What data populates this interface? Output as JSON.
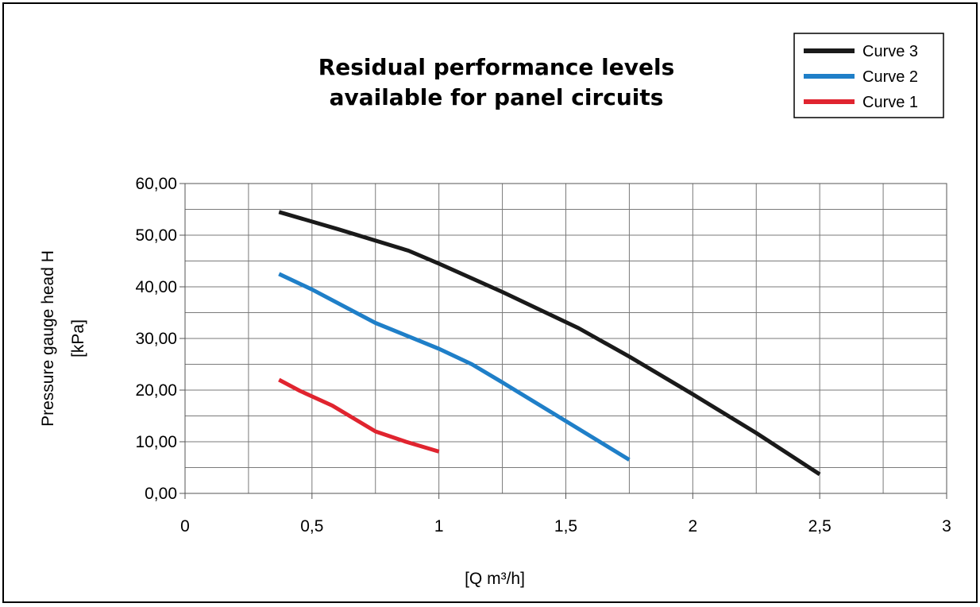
{
  "chart_data": {
    "type": "line",
    "title_lines": [
      "Residual performance levels",
      "available for panel circuits"
    ],
    "xlabel": "[Q m³/h]",
    "ylabel_lines": [
      "Pressure gauge head H",
      "[kPa]"
    ],
    "xlim": [
      0,
      3
    ],
    "ylim": [
      0,
      60
    ],
    "x_ticks": [
      0,
      0.5,
      1,
      1.5,
      2,
      2.5,
      3
    ],
    "x_tick_labels": [
      "0",
      "0,5",
      "1",
      "1,5",
      "2",
      "2,5",
      "3"
    ],
    "y_ticks": [
      0,
      10,
      20,
      30,
      40,
      50,
      60
    ],
    "y_tick_labels": [
      "0,00",
      "10,00",
      "20,00",
      "30,00",
      "40,00",
      "50,00",
      "60,00"
    ],
    "x_grid_step": 0.25,
    "y_grid_step": 5,
    "grid": true,
    "legend_position": "top-right",
    "series": [
      {
        "name": "Curve 3",
        "color": "#1a1a1a",
        "points": [
          [
            0.37,
            54.5
          ],
          [
            0.6,
            51.2
          ],
          [
            0.88,
            47.0
          ],
          [
            1.0,
            44.5
          ],
          [
            1.25,
            39.0
          ],
          [
            1.55,
            32.0
          ],
          [
            1.75,
            26.5
          ],
          [
            2.0,
            19.2
          ],
          [
            2.25,
            11.7
          ],
          [
            2.5,
            3.7
          ]
        ]
      },
      {
        "name": "Curve 2",
        "color": "#1f7fc8",
        "points": [
          [
            0.37,
            42.5
          ],
          [
            0.5,
            39.5
          ],
          [
            0.75,
            33.0
          ],
          [
            1.0,
            28.0
          ],
          [
            1.13,
            25.0
          ],
          [
            1.25,
            21.5
          ],
          [
            1.5,
            14.0
          ],
          [
            1.75,
            6.5
          ]
        ]
      },
      {
        "name": "Curve 1",
        "color": "#e0242f",
        "points": [
          [
            0.37,
            22.0
          ],
          [
            0.45,
            19.9
          ],
          [
            0.58,
            17.0
          ],
          [
            0.75,
            12.0
          ],
          [
            0.87,
            10.0
          ],
          [
            1.0,
            8.1
          ]
        ]
      }
    ]
  }
}
